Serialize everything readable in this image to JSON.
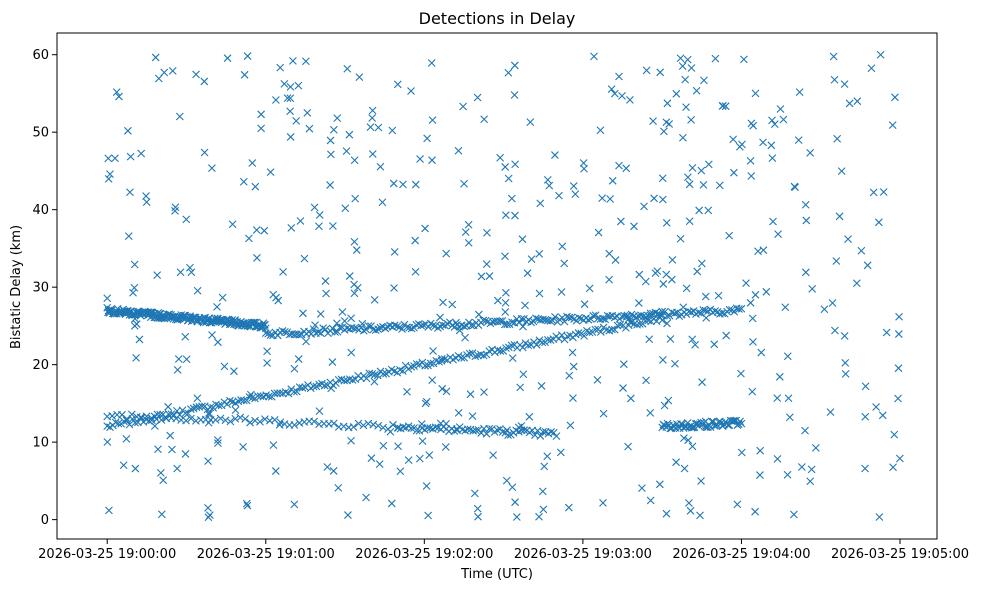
{
  "chart_data": {
    "type": "scatter",
    "title": "Detections in Delay",
    "xlabel": "Time (UTC)",
    "ylabel": "Bistatic Delay (km)",
    "marker": "x",
    "color": "#1f77b4",
    "grid": false,
    "legend": "none",
    "x_range": [
      "2026-03-25 18:59:41",
      "2026-03-25 19:05:14"
    ],
    "y_range": [
      -2.5,
      62.8
    ],
    "x_ticks": [
      "2026-03-25 19:00:00",
      "2026-03-25 19:01:00",
      "2026-03-25 19:02:00",
      "2026-03-25 19:03:00",
      "2026-03-25 19:04:00",
      "2026-03-25 19:05:00"
    ],
    "y_ticks": [
      0,
      10,
      20,
      30,
      40,
      50,
      60
    ],
    "series": [
      {
        "x_start": "2026-03-25 19:00:00",
        "x_end": "2026-03-25 19:03:30",
        "y_start": 12,
        "y_end": 26,
        "density": "dense"
      },
      {
        "x_start": "2026-03-25 19:00:00",
        "x_end": "2026-03-25 19:01:00",
        "y_start": 27,
        "y_end": 25,
        "density": "dense"
      },
      {
        "x_start": "2026-03-25 19:01:00",
        "x_end": "2026-03-25 19:04:00",
        "y_start": 24,
        "y_end": 27,
        "density": "dense"
      },
      {
        "x_start": "2026-03-25 19:00:00",
        "x_end": "2026-03-25 19:01:50",
        "y_start": 13.5,
        "y_end": 12,
        "density": "medium"
      },
      {
        "x_start": "2026-03-25 19:01:50",
        "x_end": "2026-03-25 19:02:50",
        "y_start": 12,
        "y_end": 11,
        "density": "medium"
      },
      {
        "x_start": "2026-03-25 19:03:30",
        "x_end": "2026-03-25 19:04:00",
        "y_start": 12,
        "y_end": 12.5,
        "density": "medium"
      },
      {
        "x_start": "2026-03-25 19:00:00",
        "x_end": "2026-03-25 19:05:00",
        "y_start": 0,
        "y_end": 60,
        "density": "sparse"
      }
    ]
  }
}
